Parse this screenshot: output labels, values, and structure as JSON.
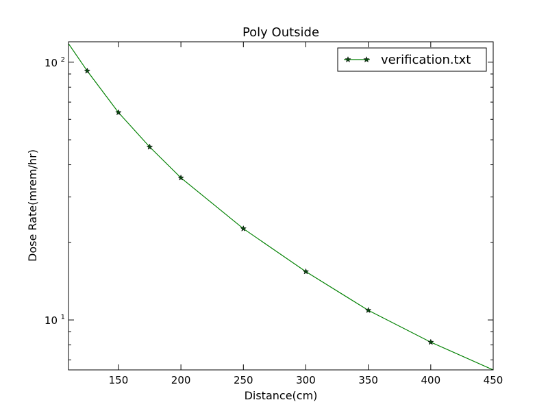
{
  "chart_data": {
    "type": "line",
    "title": "Poly Outside",
    "xlabel": "Distance(cm)",
    "ylabel": "Dose Rate(mrem/hr)",
    "xlim": [
      110,
      450
    ],
    "ylim": [
      6.4,
      120
    ],
    "yscale": "log",
    "grid": false,
    "legend_position": "top-right",
    "x_ticks": [
      150,
      200,
      250,
      300,
      350,
      400,
      450
    ],
    "x_tick_labels": [
      "150",
      "200",
      "250",
      "300",
      "350",
      "400",
      "450"
    ],
    "y_ticks": [
      10,
      100
    ],
    "y_tick_labels": [
      {
        "base": "10",
        "exp": "1"
      },
      {
        "base": "10",
        "exp": "2"
      }
    ],
    "series": [
      {
        "name": "verification.txt",
        "color": "#008000",
        "marker": "star",
        "marker_color": "#0b4a12",
        "x": [
          110,
          125,
          150,
          175,
          200,
          250,
          300,
          350,
          400,
          450
        ],
        "y": [
          118,
          92.5,
          63.8,
          46.9,
          35.6,
          22.6,
          15.4,
          10.9,
          8.2,
          6.4
        ]
      }
    ]
  }
}
